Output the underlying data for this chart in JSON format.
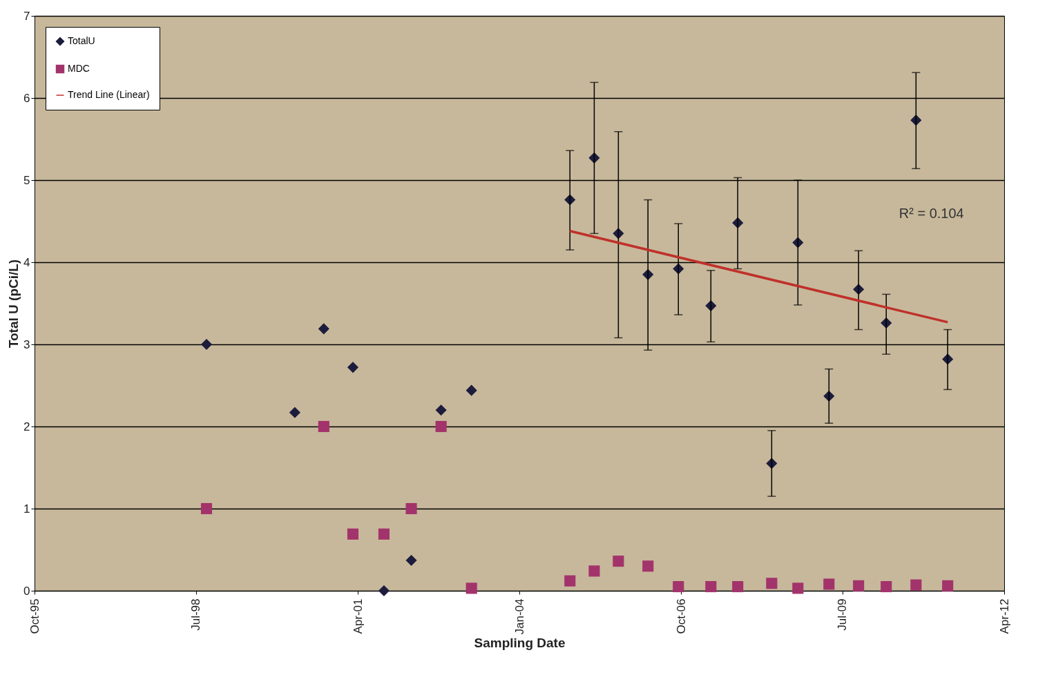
{
  "chart_data": {
    "type": "scatter",
    "xlabel": "Sampling Date",
    "ylabel": "Total U (pCi/L)",
    "x": [
      "1998-09-04",
      "2000-03-06",
      "2000-09-02",
      "2001-03-02",
      "2001-09-11",
      "2002-02-28",
      "2002-09-01",
      "2003-03-09",
      "2004-11-10",
      "2005-04-10",
      "2005-09-07",
      "2006-03-10",
      "2006-09-15",
      "2007-04-05",
      "2007-09-19",
      "2008-04-17",
      "2008-09-27",
      "2009-04-08",
      "2009-10-09",
      "2010-03-30",
      "2010-10-01",
      "2011-04-16"
    ],
    "series": [
      {
        "name": "TotalU",
        "color": "#1c1c3c",
        "marker": "diamond",
        "values": [
          3.0,
          2.17,
          3.19,
          2.72,
          0,
          0.37,
          2.2,
          2.44,
          4.76,
          5.27,
          4.35,
          3.85,
          3.92,
          3.47,
          4.48,
          1.55,
          4.24,
          2.37,
          3.67,
          3.26,
          5.73,
          2.82
        ],
        "errors": [
          null,
          null,
          null,
          null,
          null,
          null,
          null,
          null,
          [
            4.15,
            5.36
          ],
          [
            4.35,
            6.19
          ],
          [
            3.08,
            5.59
          ],
          [
            2.93,
            4.76
          ],
          [
            3.36,
            4.47
          ],
          [
            3.03,
            3.9
          ],
          [
            3.92,
            5.03
          ],
          [
            1.15,
            1.95
          ],
          [
            3.48,
            5.0
          ],
          [
            2.04,
            2.7
          ],
          [
            3.18,
            4.14
          ],
          [
            2.88,
            3.61
          ],
          [
            5.14,
            6.31
          ],
          [
            2.45,
            3.18
          ]
        ]
      },
      {
        "name": "MDC",
        "color": "#a3336b",
        "marker": "square",
        "values": [
          1.0,
          null,
          2.0,
          0.69,
          0.69,
          1.0,
          2.0,
          0.03,
          0.12,
          0.24,
          0.36,
          0.3,
          0.05,
          0.05,
          0.05,
          0.09,
          0.03,
          0.08,
          0.06,
          0.05,
          0.07,
          0.06
        ]
      },
      {
        "name": "Trend Line (Linear)",
        "type": "line",
        "color": "#c0302a",
        "x": [
          "2004-11-10",
          "2011-04-16"
        ],
        "values": [
          4.38,
          3.27
        ]
      }
    ],
    "annotations": [
      "R² = 0.104"
    ],
    "xlim": [
      "1995-10-01",
      "2012-04-01"
    ],
    "xticks": [
      {
        "value": "1995-10-01",
        "label": "Oct-95"
      },
      {
        "value": "1998-07-01",
        "label": "Jul-98"
      },
      {
        "value": "2001-04-01",
        "label": "Apr-01"
      },
      {
        "value": "2004-01-01",
        "label": "Jan-04"
      },
      {
        "value": "2006-10-01",
        "label": "Oct-06"
      },
      {
        "value": "2009-07-01",
        "label": "Jul-09"
      },
      {
        "value": "2012-04-01",
        "label": "Apr-12"
      }
    ],
    "ylim": [
      0,
      7
    ],
    "yticks": [
      0,
      1,
      2,
      3,
      4,
      5,
      6,
      7
    ],
    "grid": "y",
    "legend": "top left"
  }
}
